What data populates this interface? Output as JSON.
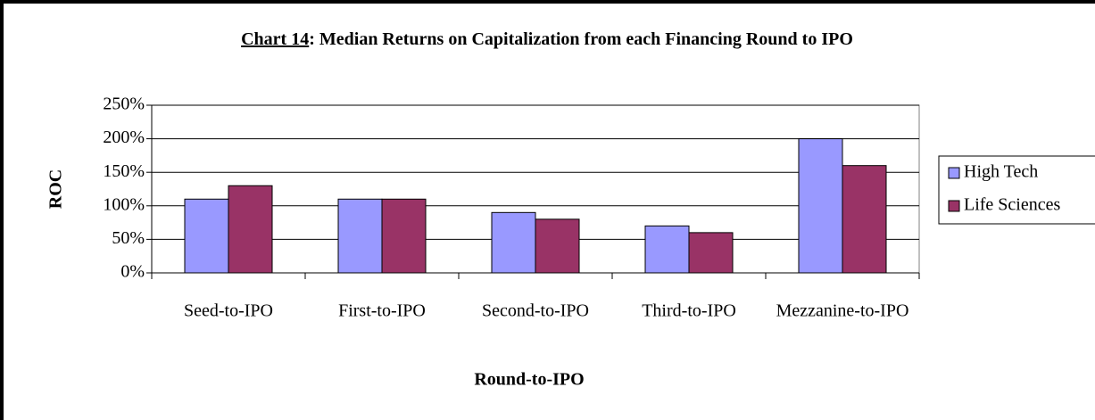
{
  "chart_data": {
    "type": "bar",
    "title": [
      "Chart 14",
      ": Median Returns on Capitalization from each Financing Round to IPO"
    ],
    "x_label": "Round-to-IPO",
    "y_label": "ROC",
    "categories": [
      "Seed-to-IPO",
      "First-to-IPO",
      "Second-to-IPO",
      "Third-to-IPO",
      "Mezzanine-to-IPO"
    ],
    "series": [
      {
        "name": "High Tech",
        "color": "#9999ff",
        "values": [
          110,
          110,
          90,
          70,
          200
        ]
      },
      {
        "name": "Life Sciences",
        "color": "#993366",
        "values": [
          130,
          110,
          80,
          60,
          160
        ]
      }
    ],
    "ylim": [
      0,
      250
    ],
    "yticks": [
      {
        "value": 0,
        "label": "0%"
      },
      {
        "value": 50,
        "label": "50%"
      },
      {
        "value": 100,
        "label": "100%"
      },
      {
        "value": 150,
        "label": "150%"
      },
      {
        "value": 200,
        "label": "200%"
      },
      {
        "value": 250,
        "label": "250%"
      }
    ],
    "grid": true,
    "legend": "right"
  }
}
